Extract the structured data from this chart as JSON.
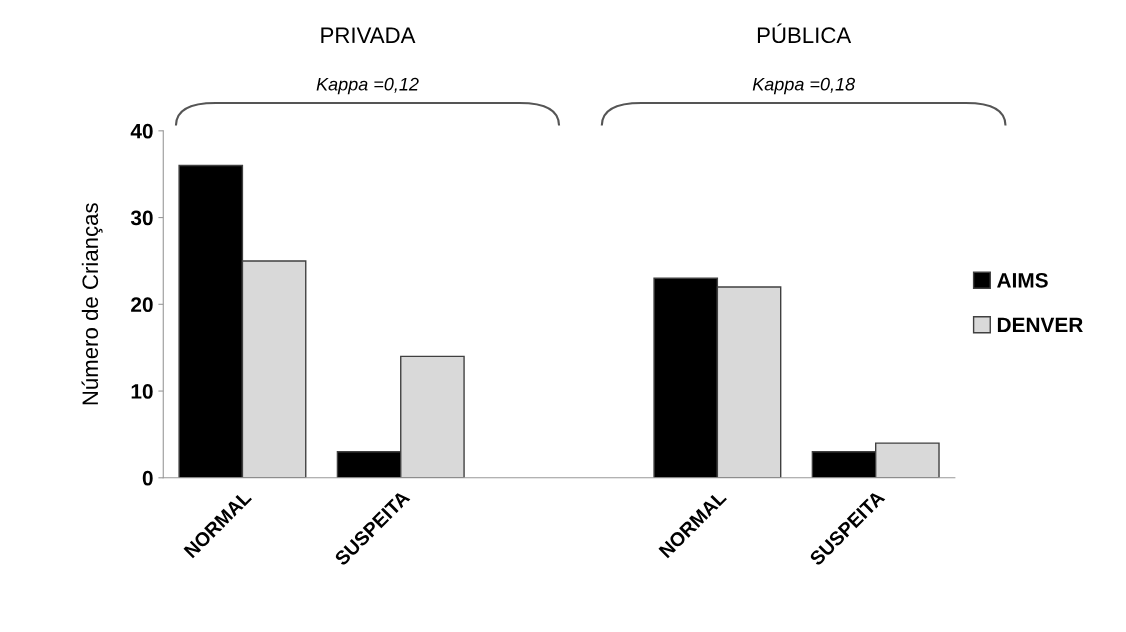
{
  "chart_data": {
    "type": "bar",
    "ylabel": "Número de Crianças",
    "categories": [
      "NORMAL",
      "SUSPEITA",
      null,
      "NORMAL",
      "SUSPEITA"
    ],
    "series": [
      {
        "name": "AIMS",
        "color": "#000000",
        "values": [
          36,
          3,
          null,
          23,
          3
        ]
      },
      {
        "name": "DENVER",
        "color": "#d9d9d9",
        "values": [
          25,
          14,
          null,
          22,
          4
        ]
      }
    ],
    "annotations": [
      "PRIVADA",
      "Kappa =0,12",
      "PÚBLICA",
      "Kappa =0,18"
    ],
    "ylim": [
      0,
      40
    ],
    "yticks": [
      0,
      10,
      20,
      30,
      40
    ],
    "grid": false,
    "legend": "right"
  }
}
